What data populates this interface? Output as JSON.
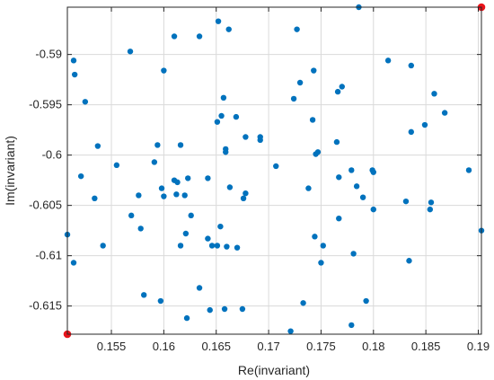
{
  "chart_data": {
    "type": "scatter",
    "title": "",
    "xlabel": "Re(invariant)",
    "ylabel": "Im(invariant)",
    "xlim": [
      0.1508,
      0.1903
    ],
    "ylim": [
      -0.6178,
      -0.5853
    ],
    "grid": true,
    "x_ticks": [
      0.155,
      0.16,
      0.165,
      0.17,
      0.175,
      0.18,
      0.185,
      0.19
    ],
    "x_tick_labels": [
      "0.155",
      "0.16",
      "0.165",
      "0.17",
      "0.175",
      "0.18",
      "0.185",
      "0.19"
    ],
    "y_ticks": [
      -0.615,
      -0.61,
      -0.605,
      -0.6,
      -0.595,
      -0.59
    ],
    "y_tick_labels": [
      "-0.615",
      "-0.61",
      "-0.605",
      "-0.6",
      "-0.595",
      "-0.59"
    ],
    "colors": {
      "points": "#0072BD",
      "highlight": "#E8141B",
      "grid": "#DADADA",
      "axis": "#262626"
    },
    "series": [
      {
        "color": "#0072BD",
        "points": [
          [
            0.1508,
            -0.6079
          ],
          [
            0.1514,
            -0.6107
          ],
          [
            0.1514,
            -0.5906
          ],
          [
            0.1515,
            -0.592
          ],
          [
            0.1521,
            -0.6021
          ],
          [
            0.1525,
            -0.5947
          ],
          [
            0.1534,
            -0.6043
          ],
          [
            0.1537,
            -0.5991
          ],
          [
            0.1542,
            -0.609
          ],
          [
            0.1555,
            -0.601
          ],
          [
            0.1568,
            -0.5897
          ],
          [
            0.1569,
            -0.606
          ],
          [
            0.1576,
            -0.604
          ],
          [
            0.1578,
            -0.6073
          ],
          [
            0.1581,
            -0.6139
          ],
          [
            0.1591,
            -0.6007
          ],
          [
            0.1594,
            -0.599
          ],
          [
            0.1597,
            -0.6145
          ],
          [
            0.1598,
            -0.6033
          ],
          [
            0.16,
            -0.5916
          ],
          [
            0.16,
            -0.6041
          ],
          [
            0.161,
            -0.5882
          ],
          [
            0.161,
            -0.6025
          ],
          [
            0.1612,
            -0.6039
          ],
          [
            0.1613,
            -0.6027
          ],
          [
            0.1616,
            -0.609
          ],
          [
            0.1616,
            -0.599
          ],
          [
            0.162,
            -0.604
          ],
          [
            0.1621,
            -0.6078
          ],
          [
            0.1622,
            -0.6162
          ],
          [
            0.1623,
            -0.6023
          ],
          [
            0.1626,
            -0.606
          ],
          [
            0.1634,
            -0.5882
          ],
          [
            0.1634,
            -0.6132
          ],
          [
            0.1642,
            -0.6023
          ],
          [
            0.1642,
            -0.6083
          ],
          [
            0.1644,
            -0.6154
          ],
          [
            0.1646,
            -0.609
          ],
          [
            0.1651,
            -0.609
          ],
          [
            0.1651,
            -0.5967
          ],
          [
            0.1652,
            -0.5867
          ],
          [
            0.1654,
            -0.6071
          ],
          [
            0.1655,
            -0.5961
          ],
          [
            0.1657,
            -0.5943
          ],
          [
            0.1658,
            -0.6153
          ],
          [
            0.1659,
            -0.5994
          ],
          [
            0.1659,
            -0.5997
          ],
          [
            0.166,
            -0.6091
          ],
          [
            0.1662,
            -0.5875
          ],
          [
            0.1663,
            -0.6032
          ],
          [
            0.1669,
            -0.5962
          ],
          [
            0.167,
            -0.6092
          ],
          [
            0.1675,
            -0.6153
          ],
          [
            0.1676,
            -0.6043
          ],
          [
            0.1678,
            -0.6038
          ],
          [
            0.1678,
            -0.5982
          ],
          [
            0.1692,
            -0.5985
          ],
          [
            0.1692,
            -0.5982
          ],
          [
            0.1707,
            -0.6011
          ],
          [
            0.1721,
            -0.6175
          ],
          [
            0.1724,
            -0.5944
          ],
          [
            0.1727,
            -0.5875
          ],
          [
            0.173,
            -0.5928
          ],
          [
            0.1733,
            -0.6147
          ],
          [
            0.1738,
            -0.6033
          ],
          [
            0.1742,
            -0.5965
          ],
          [
            0.1743,
            -0.5916
          ],
          [
            0.1744,
            -0.6081
          ],
          [
            0.1745,
            -0.5999
          ],
          [
            0.1747,
            -0.5997
          ],
          [
            0.175,
            -0.6107
          ],
          [
            0.1752,
            -0.609
          ],
          [
            0.1765,
            -0.5987
          ],
          [
            0.1766,
            -0.5937
          ],
          [
            0.1767,
            -0.6022
          ],
          [
            0.1767,
            -0.6063
          ],
          [
            0.177,
            -0.5932
          ],
          [
            0.1779,
            -0.6169
          ],
          [
            0.1779,
            -0.6015
          ],
          [
            0.1781,
            -0.6098
          ],
          [
            0.1784,
            -0.6031
          ],
          [
            0.1786,
            -0.5853
          ],
          [
            0.179,
            -0.6042
          ],
          [
            0.1793,
            -0.6145
          ],
          [
            0.1799,
            -0.6015
          ],
          [
            0.18,
            -0.6054
          ],
          [
            0.18,
            -0.6017
          ],
          [
            0.1814,
            -0.5906
          ],
          [
            0.1831,
            -0.6046
          ],
          [
            0.1834,
            -0.6105
          ],
          [
            0.1836,
            -0.5977
          ],
          [
            0.1836,
            -0.5911
          ],
          [
            0.1849,
            -0.597
          ],
          [
            0.1854,
            -0.6054
          ],
          [
            0.1855,
            -0.6047
          ],
          [
            0.1858,
            -0.5939
          ],
          [
            0.1868,
            -0.5958
          ],
          [
            0.1891,
            -0.6015
          ],
          [
            0.1903,
            -0.6075
          ]
        ]
      },
      {
        "color": "#E8141B",
        "points": [
          [
            0.1508,
            -0.6178
          ],
          [
            0.1903,
            -0.5853
          ]
        ]
      }
    ]
  }
}
